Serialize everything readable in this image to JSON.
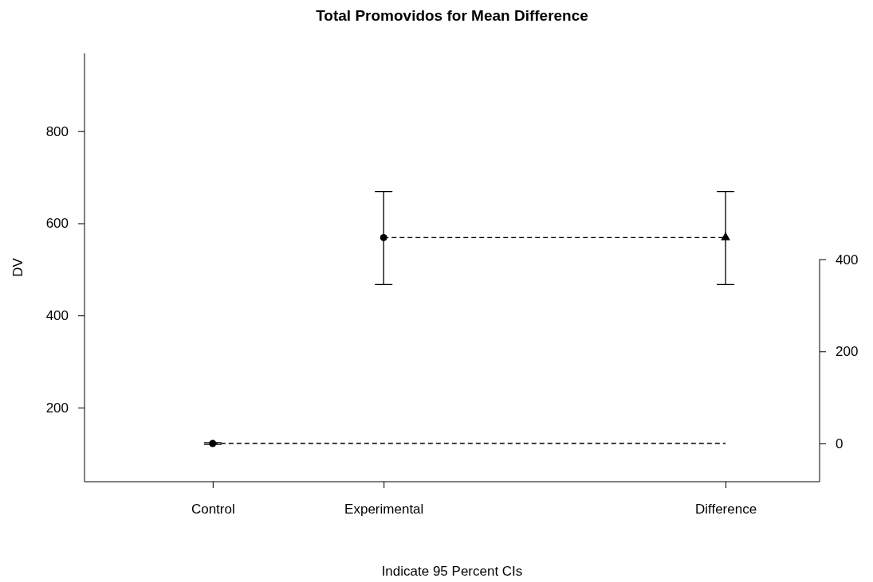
{
  "chart_data": {
    "type": "scatter",
    "title": "Total Promovidos for Mean Difference",
    "xlabel": "Indicate 95 Percent CIs",
    "ylabel": "DV",
    "categories": [
      "Control",
      "Experimental",
      null,
      "Difference"
    ],
    "ylim": [
      39,
      969
    ],
    "yticks": [
      200,
      400,
      600,
      800
    ],
    "y2lim": [
      -83,
      847
    ],
    "y2ticks": [
      0,
      200,
      400
    ],
    "grid": false,
    "series": [
      {
        "color": "#000000",
        "marker": "circle",
        "values": [
          122,
          569,
          null,
          null
        ],
        "errors": [
          2,
          [
            467,
            669
          ],
          null,
          null
        ]
      },
      {
        "color": "#000000",
        "marker": "triangle",
        "axis": "y2",
        "values": [
          null,
          null,
          null,
          447
        ],
        "errors": [
          null,
          null,
          null,
          [
            345,
            547
          ]
        ]
      },
      {
        "type": "line",
        "color": "#000000",
        "marker": "none",
        "line_style": "dashed",
        "values": [
          122,
          122,
          122,
          122
        ]
      },
      {
        "type": "line",
        "color": "#000000",
        "marker": "none",
        "line_style": "dashed",
        "values": [
          null,
          569,
          569,
          569
        ]
      }
    ]
  }
}
